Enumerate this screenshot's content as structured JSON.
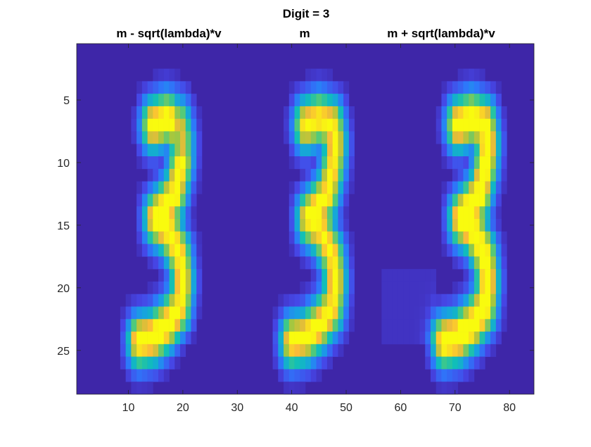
{
  "chart_data": {
    "type": "heatmap",
    "title": "Digit = 3",
    "subtitles": [
      "m - sqrt(lambda)*v",
      "m",
      "m + sqrt(lambda)*v"
    ],
    "xlabel": "",
    "ylabel": "",
    "xlim": [
      0.5,
      84.5
    ],
    "ylim": [
      0.5,
      28.5
    ],
    "y_reversed": true,
    "xticks": [
      10,
      20,
      30,
      40,
      50,
      60,
      70,
      80
    ],
    "yticks": [
      5,
      10,
      15,
      20,
      25
    ],
    "xtick_labels": [
      "10",
      "20",
      "30",
      "40",
      "50",
      "60",
      "70",
      "80"
    ],
    "ytick_labels": [
      "5",
      "10",
      "15",
      "20",
      "25"
    ],
    "grid": false,
    "colormap": "parula",
    "colors": {
      "background": "#3E26A8",
      "low": "#3E26A8",
      "high": "#F9FB0E",
      "axis": "#262626"
    },
    "image_size": {
      "rows": 28,
      "cols": 84,
      "panels": 3,
      "panel_cols": 28
    },
    "stroke_path_3": [
      [
        7,
        14.5
      ],
      [
        6.5,
        17
      ],
      [
        7,
        19.5
      ],
      [
        8.5,
        20
      ],
      [
        10.5,
        19.5
      ],
      [
        12.5,
        18.5
      ],
      [
        14,
        16
      ],
      [
        14.5,
        15
      ],
      [
        15.5,
        17.5
      ],
      [
        17.5,
        19.5
      ],
      [
        19.5,
        20
      ],
      [
        21.5,
        19.5
      ],
      [
        23,
        17
      ],
      [
        24,
        14.5
      ],
      [
        24.3,
        12
      ]
    ],
    "panel_variation": [
      "negative",
      "mean",
      "positive"
    ]
  }
}
